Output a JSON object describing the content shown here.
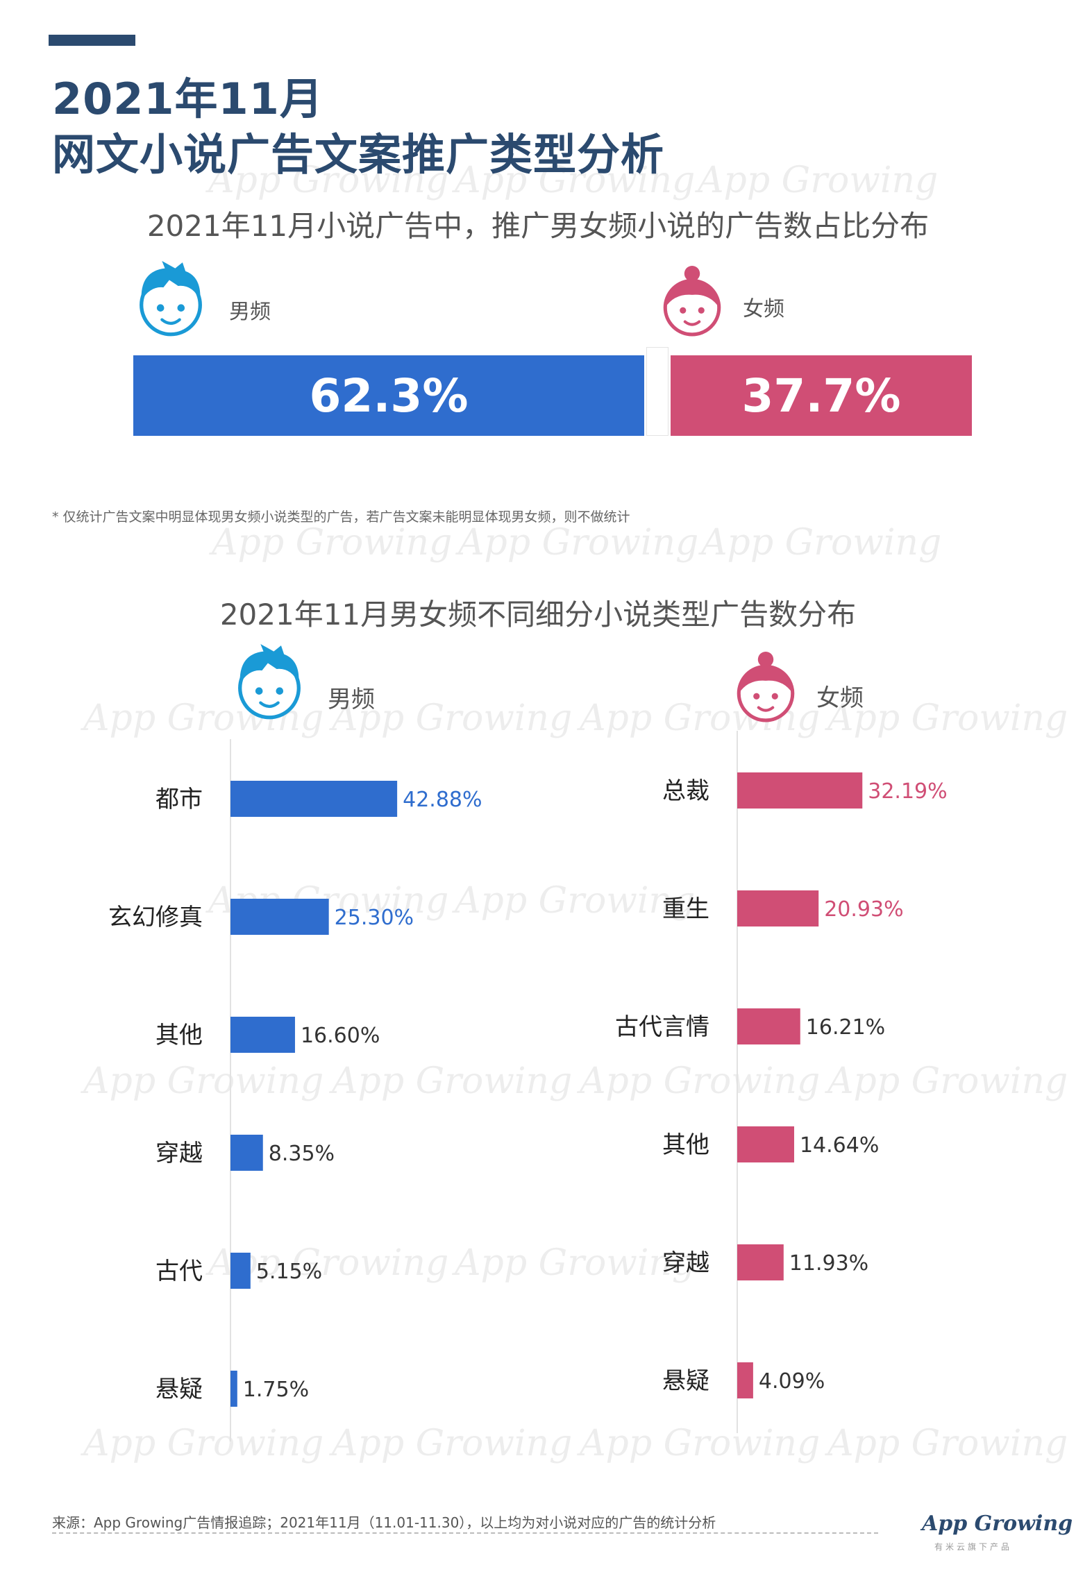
{
  "page": {
    "title_line1": "2021年11月",
    "title_line2": "网文小说广告文案推广类型分析",
    "watermark_text": "App Growing"
  },
  "section1": {
    "title": "2021年11月小说广告中，推广男女频小说的广告数占比分布",
    "male_label": "男频",
    "female_label": "女频",
    "footnote": "* 仅统计广告文案中明显体现男女频小说类型的广告，若广告文案未能明显体现男女频，则不做统计"
  },
  "section2": {
    "title": "2021年11月男女频不同细分小说类型广告数分布",
    "male_label": "男频",
    "female_label": "女频"
  },
  "colors": {
    "male": "#2f6dce",
    "female": "#d04e75",
    "title": "#2b4a6f",
    "male_icon": "#1a9ad6",
    "female_icon": "#d04e75"
  },
  "icons": {
    "male": "boy-face-icon",
    "female": "girl-face-icon"
  },
  "chart_data": [
    {
      "type": "bar",
      "orientation": "horizontal-stacked",
      "categories": [
        "男频",
        "女频"
      ],
      "values": [
        62.3,
        37.7
      ],
      "value_labels": [
        "62.3%",
        "37.7%"
      ],
      "unit": "%"
    },
    {
      "type": "bar",
      "orientation": "horizontal",
      "series_label": "男频",
      "categories": [
        "都市",
        "玄幻修真",
        "其他",
        "穿越",
        "古代",
        "悬疑"
      ],
      "values": [
        42.88,
        25.3,
        16.6,
        8.35,
        5.15,
        1.75
      ],
      "value_labels": [
        "42.88%",
        "25.30%",
        "16.60%",
        "8.35%",
        "5.15%",
        "1.75%"
      ],
      "unit": "%"
    },
    {
      "type": "bar",
      "orientation": "horizontal",
      "series_label": "女频",
      "categories": [
        "总裁",
        "重生",
        "古代言情",
        "其他",
        "穿越",
        "悬疑"
      ],
      "values": [
        32.19,
        20.93,
        16.21,
        14.64,
        11.93,
        4.09
      ],
      "value_labels": [
        "32.19%",
        "20.93%",
        "16.21%",
        "14.64%",
        "11.93%",
        "4.09%"
      ],
      "unit": "%"
    }
  ],
  "footer": {
    "source": "来源：App Growing广告情报追踪；2021年11月（11.01-11.30），以上均为对小说对应的广告的统计分析",
    "brand": "App Growing",
    "brand_sub": "有米云旗下产品"
  }
}
